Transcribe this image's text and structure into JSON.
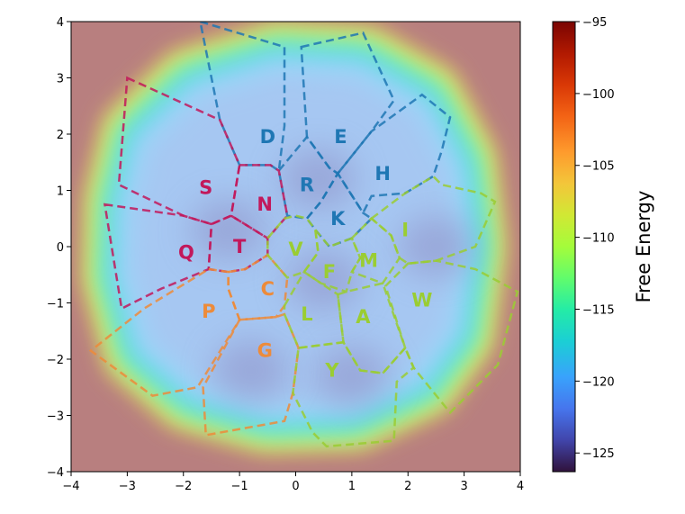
{
  "chart_data": {
    "type": "heatmap",
    "title": "",
    "xlabel": "",
    "ylabel": "",
    "xlim": [
      -4,
      4
    ],
    "ylim": [
      -4,
      4
    ],
    "x_ticks": [
      -4,
      -3,
      -2,
      -1,
      0,
      1,
      2,
      3,
      4
    ],
    "y_ticks": [
      -4,
      -3,
      -2,
      -1,
      0,
      1,
      2,
      3,
      4
    ],
    "grid": false,
    "colorbar": {
      "label": "Free Energy",
      "range": [
        -126.3,
        -95
      ],
      "ticks": [
        -95,
        -100,
        -105,
        -110,
        -115,
        -120,
        -125
      ],
      "colormap": "turbo"
    },
    "background_color": "#b87f7f",
    "basin_minima": [
      {
        "x": 0.5,
        "y": -0.6,
        "value": -126
      },
      {
        "x": 2.5,
        "y": 0.0,
        "value": -124
      },
      {
        "x": -1.2,
        "y": 0.3,
        "value": -122
      },
      {
        "x": 0.4,
        "y": 1.2,
        "value": -122
      },
      {
        "x": 1.0,
        "y": -2.3,
        "value": -123
      },
      {
        "x": -0.8,
        "y": -2.2,
        "value": -121
      }
    ],
    "regions": [
      {
        "label": "D",
        "color": "#1f77b4",
        "center": [
          -0.5,
          1.95
        ]
      },
      {
        "label": "E",
        "color": "#1f77b4",
        "center": [
          0.8,
          1.95
        ]
      },
      {
        "label": "R",
        "color": "#1f77b4",
        "center": [
          0.2,
          1.1
        ]
      },
      {
        "label": "H",
        "color": "#1f77b4",
        "center": [
          1.55,
          1.3
        ]
      },
      {
        "label": "K",
        "color": "#1f77b4",
        "center": [
          0.75,
          0.5
        ]
      },
      {
        "label": "S",
        "color": "#c2185b",
        "center": [
          -1.6,
          1.05
        ]
      },
      {
        "label": "N",
        "color": "#c2185b",
        "center": [
          -0.55,
          0.75
        ]
      },
      {
        "label": "Q",
        "color": "#c2185b",
        "center": [
          -1.95,
          -0.1
        ]
      },
      {
        "label": "T",
        "color": "#c2185b",
        "center": [
          -1.0,
          0.0
        ]
      },
      {
        "label": "P",
        "color": "#ed8b3a",
        "center": [
          -1.55,
          -1.15
        ]
      },
      {
        "label": "C",
        "color": "#ed8b3a",
        "center": [
          -0.5,
          -0.75
        ]
      },
      {
        "label": "G",
        "color": "#ed8b3a",
        "center": [
          -0.55,
          -1.85
        ]
      },
      {
        "label": "V",
        "color": "#9acd32",
        "center": [
          0.0,
          -0.05
        ]
      },
      {
        "label": "F",
        "color": "#9acd32",
        "center": [
          0.6,
          -0.45
        ]
      },
      {
        "label": "M",
        "color": "#9acd32",
        "center": [
          1.3,
          -0.25
        ]
      },
      {
        "label": "I",
        "color": "#9acd32",
        "center": [
          1.95,
          0.3
        ]
      },
      {
        "label": "W",
        "color": "#9acd32",
        "center": [
          2.25,
          -0.95
        ]
      },
      {
        "label": "L",
        "color": "#9acd32",
        "center": [
          0.2,
          -1.2
        ]
      },
      {
        "label": "A",
        "color": "#9acd32",
        "center": [
          1.2,
          -1.25
        ]
      },
      {
        "label": "Y",
        "color": "#9acd32",
        "center": [
          0.65,
          -2.2
        ]
      }
    ]
  }
}
